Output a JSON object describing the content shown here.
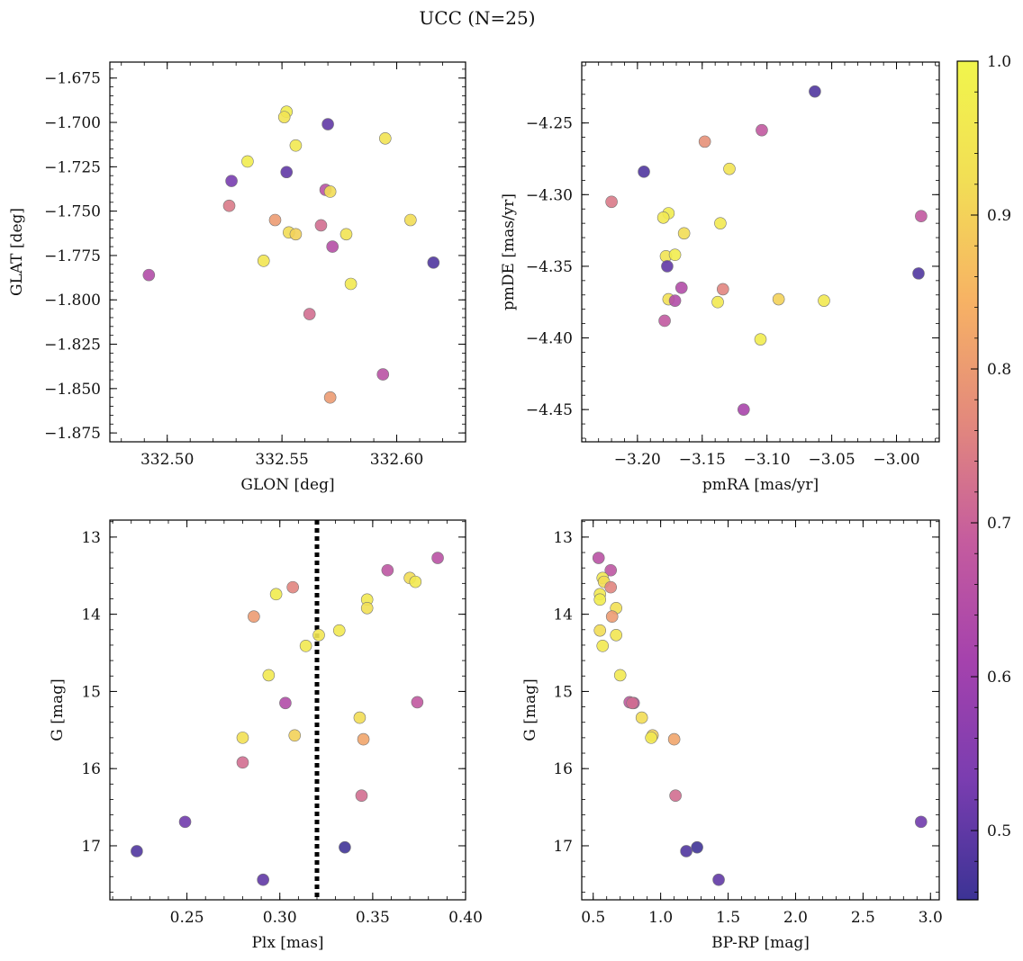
{
  "figure": {
    "suptitle": "UCC (N=25)"
  },
  "colorbar": {
    "range": [
      0.455,
      1.0
    ],
    "ticks": [
      0.5,
      0.6,
      0.7,
      0.8,
      0.9,
      1.0
    ],
    "tick_labels": [
      "0.5",
      "0.6",
      "0.7",
      "0.8",
      "0.9",
      "1.0"
    ],
    "colormap": "plasma (truncated)",
    "gradient_colors": [
      "#3c3395",
      "#7a3db0",
      "#a542ad",
      "#c55c9e",
      "#e3897c",
      "#f7b264",
      "#f2de55",
      "#f1f54c"
    ]
  },
  "marker_style": {
    "edgecolor": "#777777",
    "alpha": 0.9
  },
  "chart_data": [
    {
      "id": "glon-glat",
      "type": "scatter",
      "xlabel": "GLON [deg]",
      "ylabel": "GLAT [deg]",
      "xlim": [
        332.475,
        332.63
      ],
      "ylim": [
        -1.88,
        -1.666
      ],
      "y_inverted": false,
      "grid": false,
      "xticks": [
        332.5,
        332.55,
        332.6
      ],
      "xtick_labels": [
        "332.50",
        "332.55",
        "332.60"
      ],
      "yticks": [
        -1.675,
        -1.7,
        -1.725,
        -1.75,
        -1.775,
        -1.8,
        -1.825,
        -1.85,
        -1.875
      ],
      "ytick_labels": [
        "−1.675",
        "−1.700",
        "−1.725",
        "−1.750",
        "−1.775",
        "−1.800",
        "−1.825",
        "−1.850",
        "−1.875"
      ],
      "x": [
        332.552,
        332.551,
        332.57,
        332.556,
        332.595,
        332.535,
        332.552,
        332.528,
        332.569,
        332.571,
        332.527,
        332.547,
        332.606,
        332.567,
        332.553,
        332.556,
        332.578,
        332.572,
        332.542,
        332.492,
        332.616,
        332.58,
        332.562,
        332.594,
        332.571
      ],
      "y": [
        -1.694,
        -1.697,
        -1.701,
        -1.713,
        -1.709,
        -1.722,
        -1.728,
        -1.733,
        -1.738,
        -1.739,
        -1.747,
        -1.755,
        -1.755,
        -1.758,
        -1.762,
        -1.763,
        -1.763,
        -1.77,
        -1.778,
        -1.786,
        -1.779,
        -1.791,
        -1.808,
        -1.842,
        -1.855
      ],
      "c": [
        0.97,
        0.94,
        0.5,
        0.96,
        0.94,
        0.97,
        0.5,
        0.53,
        0.66,
        0.92,
        0.74,
        0.8,
        0.92,
        0.72,
        0.92,
        0.9,
        0.94,
        0.65,
        0.95,
        0.64,
        0.48,
        0.96,
        0.72,
        0.66,
        0.8
      ]
    },
    {
      "id": "pmra-pmde",
      "type": "scatter",
      "xlabel": "pmRA [mas/yr]",
      "ylabel": "pmDE [mas/yr]",
      "xlim": [
        -3.243,
        -2.967
      ],
      "ylim": [
        -4.4725,
        -4.2075
      ],
      "y_inverted": false,
      "grid": false,
      "xticks": [
        -3.2,
        -3.15,
        -3.1,
        -3.05,
        -3.0
      ],
      "xtick_labels": [
        "−3.20",
        "−3.15",
        "−3.10",
        "−3.05",
        "−3.00"
      ],
      "yticks": [
        -4.25,
        -4.3,
        -4.35,
        -4.4,
        -4.45
      ],
      "ytick_labels": [
        "−4.25",
        "−4.30",
        "−4.35",
        "−4.40",
        "−4.45"
      ],
      "x": [
        -3.063,
        -3.104,
        -3.148,
        -3.129,
        -3.195,
        -3.22,
        -3.176,
        -3.18,
        -3.136,
        -3.164,
        -2.981,
        -3.178,
        -3.171,
        -3.177,
        -3.166,
        -3.134,
        -3.176,
        -3.171,
        -3.138,
        -3.091,
        -3.056,
        -3.179,
        -3.105,
        -3.118,
        -2.983
      ],
      "y": [
        -4.228,
        -4.255,
        -4.263,
        -4.282,
        -4.284,
        -4.305,
        -4.313,
        -4.316,
        -4.32,
        -4.327,
        -4.315,
        -4.343,
        -4.342,
        -4.35,
        -4.365,
        -4.366,
        -4.373,
        -4.374,
        -4.375,
        -4.373,
        -4.374,
        -4.388,
        -4.401,
        -4.45,
        -4.355
      ],
      "c": [
        0.48,
        0.68,
        0.78,
        0.94,
        0.48,
        0.74,
        0.97,
        0.96,
        0.96,
        0.92,
        0.68,
        0.94,
        0.97,
        0.5,
        0.64,
        0.76,
        0.93,
        0.64,
        0.96,
        0.9,
        0.96,
        0.68,
        0.97,
        0.62,
        0.48
      ]
    },
    {
      "id": "plx-g",
      "type": "scatter",
      "xlabel": "Plx [mas]",
      "ylabel": "G [mag]",
      "xlim": [
        0.2085,
        0.4
      ],
      "ylim": [
        12.78,
        17.7
      ],
      "y_inverted": true,
      "grid": false,
      "xticks": [
        0.25,
        0.3,
        0.35,
        0.4
      ],
      "xtick_labels": [
        "0.25",
        "0.30",
        "0.35",
        "0.40"
      ],
      "yticks": [
        13,
        14,
        15,
        16,
        17
      ],
      "ytick_labels": [
        "13",
        "14",
        "15",
        "16",
        "17"
      ],
      "x": [
        0.385,
        0.358,
        0.37,
        0.373,
        0.307,
        0.298,
        0.347,
        0.347,
        0.286,
        0.332,
        0.321,
        0.314,
        0.294,
        0.303,
        0.374,
        0.343,
        0.28,
        0.308,
        0.345,
        0.28,
        0.344,
        0.249,
        0.223,
        0.335,
        0.291
      ],
      "y": [
        13.27,
        13.43,
        13.53,
        13.58,
        13.65,
        13.74,
        13.81,
        13.92,
        14.03,
        14.21,
        14.27,
        14.41,
        14.79,
        15.15,
        15.14,
        15.34,
        15.6,
        15.57,
        15.62,
        15.92,
        16.35,
        16.69,
        17.07,
        17.02,
        17.44
      ],
      "c": [
        0.66,
        0.67,
        0.92,
        0.96,
        0.76,
        0.97,
        0.96,
        0.93,
        0.8,
        0.96,
        0.95,
        0.96,
        0.96,
        0.64,
        0.68,
        0.92,
        0.93,
        0.9,
        0.82,
        0.72,
        0.72,
        0.52,
        0.48,
        0.46,
        0.5
      ],
      "vline": {
        "x": 0.32,
        "style": "dotted",
        "color": "#000000"
      }
    },
    {
      "id": "bprp-g",
      "type": "scatter",
      "xlabel": "BP-RP [mag]",
      "ylabel": "G [mag]",
      "xlim": [
        0.415,
        3.065
      ],
      "ylim": [
        12.78,
        17.7
      ],
      "y_inverted": true,
      "grid": false,
      "xticks": [
        0.5,
        1.0,
        1.5,
        2.0,
        2.5,
        3.0
      ],
      "xtick_labels": [
        "0.5",
        "1.0",
        "1.5",
        "2.0",
        "2.5",
        "3.0"
      ],
      "yticks": [
        13,
        14,
        15,
        16,
        17
      ],
      "ytick_labels": [
        "13",
        "14",
        "15",
        "16",
        "17"
      ],
      "x": [
        0.54,
        0.63,
        0.57,
        0.58,
        0.63,
        0.55,
        0.55,
        0.67,
        0.64,
        0.55,
        0.67,
        0.57,
        0.7,
        0.77,
        0.8,
        0.86,
        0.94,
        0.93,
        1.1,
        1.11,
        1.19,
        1.27,
        1.43,
        2.93,
        0.79
      ],
      "y": [
        13.27,
        13.43,
        13.53,
        13.58,
        13.65,
        13.74,
        13.81,
        13.92,
        14.03,
        14.21,
        14.27,
        14.41,
        14.79,
        15.14,
        15.15,
        15.34,
        15.57,
        15.6,
        15.62,
        16.35,
        17.07,
        17.02,
        17.44,
        16.69,
        15.15
      ],
      "c": [
        0.66,
        0.67,
        0.96,
        0.92,
        0.76,
        0.96,
        0.97,
        0.93,
        0.8,
        0.92,
        0.95,
        0.96,
        0.96,
        0.68,
        0.64,
        0.92,
        0.9,
        0.96,
        0.82,
        0.72,
        0.48,
        0.46,
        0.5,
        0.52,
        0.72
      ]
    }
  ]
}
